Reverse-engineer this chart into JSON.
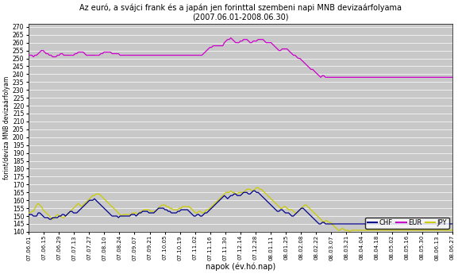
{
  "title_line1": "Az euró, a svájci frank és a japán jen forinttal szembeni napi MNB devizaárfolyama",
  "title_line2": "(2007.06.01-2008.06.30)",
  "ylabel": "forint/deviza MNB devizaárfolyam",
  "xlabel": "napok (év.hó.nap)",
  "ylim": [
    140,
    272
  ],
  "ytick_min": 140,
  "ytick_max": 270,
  "ytick_step": 5,
  "bg_color": "#c8c8c8",
  "fig_color": "#ffffff",
  "chf_color": "#00008B",
  "eur_color": "#CC00CC",
  "jpy_color": "#CCCC00",
  "grid_color": "#ffffff",
  "x_tick_labels": [
    "07.06.01",
    "07.06.15",
    "07.06.29",
    "07.07.13",
    "07.07.27",
    "07.08.10",
    "07.08.24",
    "07.09.07",
    "07.09.21",
    "07.10.05",
    "07.10.19",
    "07.11.02",
    "07.11.16",
    "07.11.30",
    "07.12.14",
    "07.12.28",
    "08.01.11",
    "08.01.25",
    "08.02.08",
    "08.02.22",
    "08.03.07",
    "08.03.21",
    "08.04.04",
    "08.04.18",
    "08.05.02",
    "08.05.16",
    "08.05.30",
    "08.06.13",
    "08.06.27"
  ],
  "chf": [
    151,
    151,
    151,
    150,
    150,
    150,
    152,
    152,
    151,
    150,
    149,
    149,
    149,
    148,
    148,
    149,
    149,
    149,
    149,
    150,
    150,
    151,
    151,
    150,
    151,
    152,
    153,
    153,
    152,
    152,
    152,
    153,
    154,
    155,
    156,
    157,
    158,
    159,
    160,
    160,
    160,
    161,
    160,
    159,
    158,
    157,
    156,
    155,
    154,
    153,
    152,
    151,
    150,
    150,
    150,
    150,
    149,
    150,
    150,
    150,
    150,
    150,
    150,
    150,
    151,
    151,
    151,
    150,
    151,
    152,
    152,
    153,
    153,
    153,
    153,
    152,
    152,
    152,
    152,
    153,
    154,
    155,
    155,
    155,
    155,
    154,
    154,
    153,
    153,
    152,
    152,
    152,
    152,
    153,
    153,
    154,
    154,
    154,
    154,
    154,
    153,
    152,
    151,
    150,
    150,
    151,
    151,
    150,
    150,
    151,
    152,
    152,
    153,
    154,
    155,
    156,
    157,
    158,
    159,
    160,
    161,
    162,
    163,
    162,
    161,
    162,
    163,
    163,
    164,
    164,
    163,
    163,
    163,
    164,
    165,
    165,
    165,
    164,
    164,
    165,
    166,
    166,
    165,
    165,
    164,
    163,
    162,
    161,
    160,
    159,
    158,
    157,
    156,
    155,
    154,
    153,
    153,
    154,
    154,
    153,
    152,
    152,
    152,
    151,
    150,
    150,
    151,
    152,
    153,
    154,
    155,
    155,
    154,
    153,
    152,
    151,
    150,
    149,
    148,
    147,
    146,
    145,
    145,
    146,
    146,
    145,
    145,
    145,
    145,
    145,
    145,
    145,
    145,
    145,
    145,
    145,
    145,
    145,
    145,
    145,
    145,
    145,
    145,
    145,
    145,
    145,
    145,
    145,
    145,
    145,
    145,
    145,
    145,
    145,
    145,
    145,
    145,
    145,
    145,
    145,
    145,
    145,
    145,
    145,
    145,
    145,
    145,
    145,
    145,
    145,
    145,
    145,
    145,
    145,
    145,
    145,
    145,
    145,
    145,
    145,
    145,
    145,
    145,
    145,
    145,
    145,
    145,
    145,
    145,
    145,
    145,
    145,
    145,
    145,
    145,
    145,
    145,
    145,
    145,
    145,
    145,
    145,
    145,
    145,
    145
  ],
  "eur": [
    252,
    252,
    252,
    251,
    252,
    252,
    253,
    254,
    255,
    255,
    254,
    253,
    253,
    252,
    252,
    251,
    251,
    251,
    252,
    252,
    253,
    253,
    252,
    252,
    252,
    252,
    252,
    252,
    252,
    253,
    253,
    254,
    254,
    254,
    254,
    253,
    252,
    252,
    252,
    252,
    252,
    252,
    252,
    252,
    252,
    253,
    253,
    254,
    254,
    254,
    254,
    254,
    253,
    253,
    253,
    253,
    253,
    252,
    252,
    252,
    252,
    252,
    252,
    252,
    252,
    252,
    252,
    252,
    252,
    252,
    252,
    252,
    252,
    252,
    252,
    252,
    252,
    252,
    252,
    252,
    252,
    252,
    252,
    252,
    252,
    252,
    252,
    252,
    252,
    252,
    252,
    252,
    252,
    252,
    252,
    252,
    252,
    252,
    252,
    252,
    252,
    252,
    252,
    252,
    252,
    252,
    252,
    252,
    252,
    253,
    254,
    255,
    256,
    257,
    257,
    258,
    258,
    258,
    258,
    258,
    258,
    258,
    260,
    261,
    262,
    262,
    263,
    262,
    261,
    260,
    260,
    260,
    261,
    261,
    262,
    262,
    262,
    261,
    260,
    260,
    261,
    261,
    261,
    262,
    262,
    262,
    262,
    261,
    260,
    260,
    260,
    260,
    259,
    258,
    257,
    256,
    255,
    255,
    256,
    256,
    256,
    256,
    255,
    254,
    253,
    252,
    252,
    251,
    250,
    250,
    249,
    248,
    247,
    246,
    245,
    244,
    243,
    243,
    242,
    241,
    240,
    239,
    238,
    239,
    239,
    238,
    238,
    238,
    238,
    238,
    238,
    238,
    238,
    238,
    238,
    238,
    238,
    238,
    238,
    238,
    238,
    238,
    238,
    238,
    238,
    238,
    238,
    238,
    238,
    238,
    238,
    238,
    238,
    238,
    238,
    238,
    238,
    238,
    238,
    238,
    238,
    238,
    238,
    238,
    238,
    238,
    238,
    238,
    238,
    238,
    238,
    238,
    238,
    238,
    238,
    238,
    238,
    238,
    238,
    238,
    238,
    238,
    238,
    238,
    238,
    238,
    238,
    238,
    238,
    238,
    238,
    238,
    238,
    238,
    238,
    238,
    238,
    238,
    238,
    238,
    238,
    238,
    238,
    238,
    238
  ],
  "jpy": [
    152,
    152,
    153,
    153,
    155,
    157,
    158,
    157,
    156,
    154,
    153,
    152,
    151,
    150,
    149,
    148,
    149,
    150,
    151,
    150,
    150,
    149,
    149,
    150,
    151,
    152,
    153,
    154,
    155,
    156,
    157,
    158,
    157,
    156,
    157,
    158,
    159,
    160,
    161,
    162,
    163,
    163,
    164,
    164,
    164,
    163,
    162,
    161,
    160,
    159,
    158,
    157,
    156,
    155,
    154,
    153,
    152,
    151,
    150,
    151,
    151,
    151,
    151,
    151,
    151,
    152,
    152,
    152,
    151,
    152,
    153,
    153,
    154,
    154,
    154,
    154,
    153,
    153,
    153,
    153,
    154,
    155,
    156,
    157,
    157,
    157,
    156,
    156,
    155,
    155,
    154,
    154,
    154,
    154,
    155,
    155,
    156,
    156,
    156,
    156,
    156,
    155,
    154,
    153,
    152,
    152,
    153,
    153,
    152,
    152,
    153,
    154,
    154,
    155,
    156,
    157,
    158,
    159,
    160,
    161,
    162,
    163,
    164,
    165,
    165,
    165,
    166,
    165,
    165,
    164,
    164,
    165,
    165,
    165,
    165,
    166,
    167,
    167,
    167,
    166,
    166,
    167,
    168,
    168,
    167,
    167,
    166,
    165,
    164,
    163,
    162,
    161,
    160,
    159,
    158,
    157,
    156,
    155,
    155,
    156,
    156,
    155,
    154,
    154,
    154,
    153,
    152,
    152,
    153,
    154,
    155,
    156,
    157,
    157,
    156,
    155,
    154,
    153,
    152,
    151,
    150,
    149,
    148,
    147,
    146,
    147,
    147,
    146,
    146,
    145,
    144,
    143,
    142,
    141,
    141,
    142,
    142,
    141,
    141,
    141,
    140,
    141,
    141,
    141,
    141,
    141,
    141,
    141,
    141,
    141,
    141,
    141,
    141,
    141,
    141,
    141,
    141,
    141,
    141,
    141,
    141,
    141,
    141,
    141,
    141,
    141,
    141,
    141,
    141,
    141,
    141,
    141,
    141,
    141,
    141,
    141,
    141,
    141,
    141,
    141,
    141,
    141,
    141,
    141,
    141,
    141,
    141,
    141,
    141,
    141,
    141,
    141,
    141,
    141,
    141,
    141,
    141,
    141,
    141,
    141,
    141,
    141,
    141,
    141,
    141
  ]
}
